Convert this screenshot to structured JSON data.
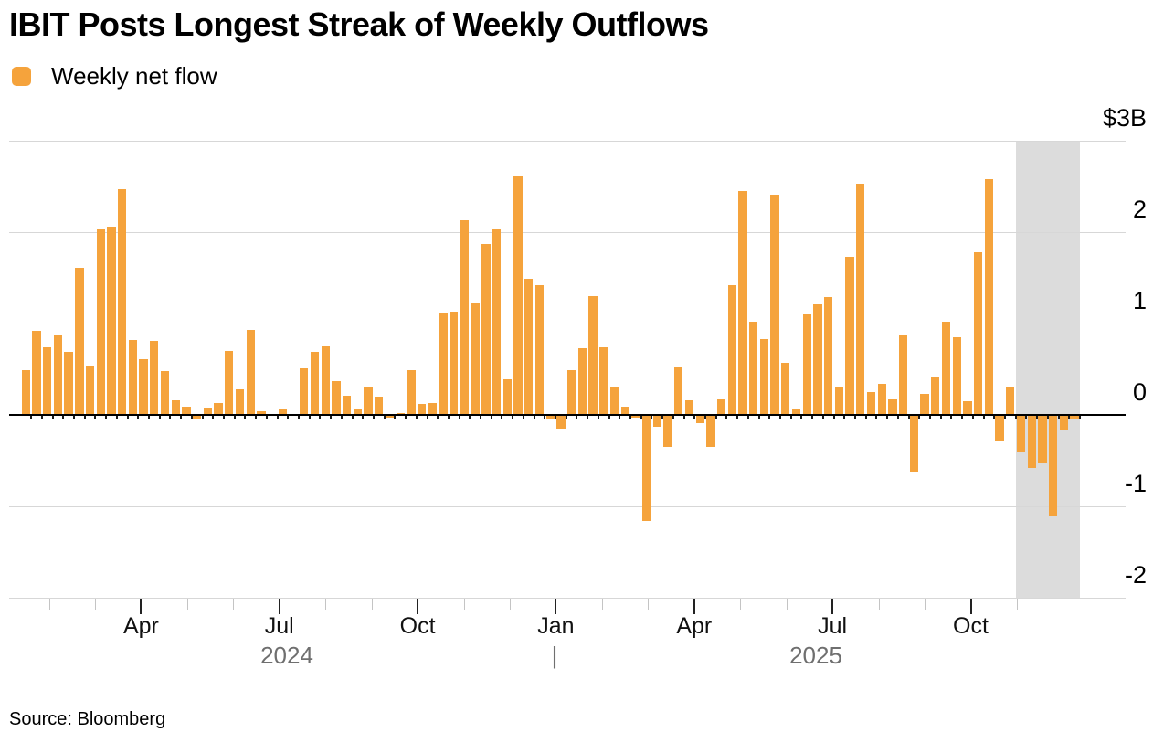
{
  "title": "IBIT Posts Longest Streak of Weekly Outflows",
  "legend": {
    "label": "Weekly net flow"
  },
  "source": "Source: Bloomberg",
  "colors": {
    "bar": "#F5A33C",
    "band": "#DCDCDC",
    "grid": "#D7D7D7",
    "zero_line": "#000000",
    "week_tick": "#1A1A1A",
    "minor_tick": "#C4C4C4",
    "major_tick": "#222222",
    "month_label": "#111111",
    "year_label": "#6F6F6F",
    "text": "#000000"
  },
  "chart_data": {
    "type": "bar",
    "title": "IBIT Posts Longest Streak of Weekly Outflows",
    "unit": "billions of USD",
    "grid": true,
    "legend_position": "top-left",
    "series": [
      {
        "name": "Weekly net flow",
        "values": [
          0.49,
          0.92,
          0.74,
          0.87,
          0.69,
          1.61,
          0.54,
          2.03,
          2.06,
          2.47,
          0.82,
          0.61,
          0.81,
          0.48,
          0.16,
          0.09,
          -0.04,
          0.08,
          0.13,
          0.7,
          0.28,
          0.93,
          0.04,
          0.01,
          0.07,
          0.01,
          0.51,
          0.69,
          0.75,
          0.37,
          0.21,
          0.07,
          0.31,
          0.2,
          -0.02,
          0.02,
          0.49,
          0.12,
          0.13,
          1.12,
          1.13,
          2.13,
          1.23,
          1.87,
          2.03,
          0.39,
          2.61,
          1.49,
          1.42,
          -0.03,
          -0.14,
          0.49,
          0.73,
          1.3,
          0.74,
          0.3,
          0.09,
          -0.02,
          -1.15,
          -0.12,
          -0.34,
          0.52,
          0.16,
          -0.08,
          -0.34,
          0.17,
          1.42,
          2.45,
          1.02,
          0.83,
          2.41,
          0.57,
          0.07,
          1.1,
          1.21,
          1.29,
          0.31,
          1.73,
          2.53,
          0.25,
          0.34,
          0.17,
          0.87,
          -0.61,
          0.23,
          0.42,
          1.02,
          0.85,
          0.15,
          1.78,
          2.58,
          -0.28,
          0.3,
          -0.4,
          -0.57,
          -0.52,
          -1.1,
          -0.15,
          -0.04
        ]
      }
    ],
    "y_axis": {
      "max": 3,
      "min": -2,
      "zero_line": true,
      "labels": [
        {
          "text": "$3B",
          "value": 3
        },
        {
          "text": "2",
          "value": 2
        },
        {
          "text": "1",
          "value": 1
        },
        {
          "text": "0",
          "value": 0
        },
        {
          "text": "-1",
          "value": -1
        },
        {
          "text": "-2",
          "value": -2
        }
      ]
    },
    "x_axis": {
      "minor_tick_count": 23,
      "labeled_ticks": [
        {
          "month_index": 2,
          "label": "Apr"
        },
        {
          "month_index": 5,
          "label": "Jul"
        },
        {
          "month_index": 8,
          "label": "Oct"
        },
        {
          "month_index": 11,
          "label": "Jan"
        },
        {
          "month_index": 14,
          "label": "Apr"
        },
        {
          "month_index": 17,
          "label": "Jul"
        },
        {
          "month_index": 20,
          "label": "Oct"
        }
      ],
      "year_labels": [
        "2024",
        "|",
        "2025"
      ]
    },
    "highlight_band": {
      "start_bar_index": 93,
      "end_bar_index": 98
    }
  }
}
